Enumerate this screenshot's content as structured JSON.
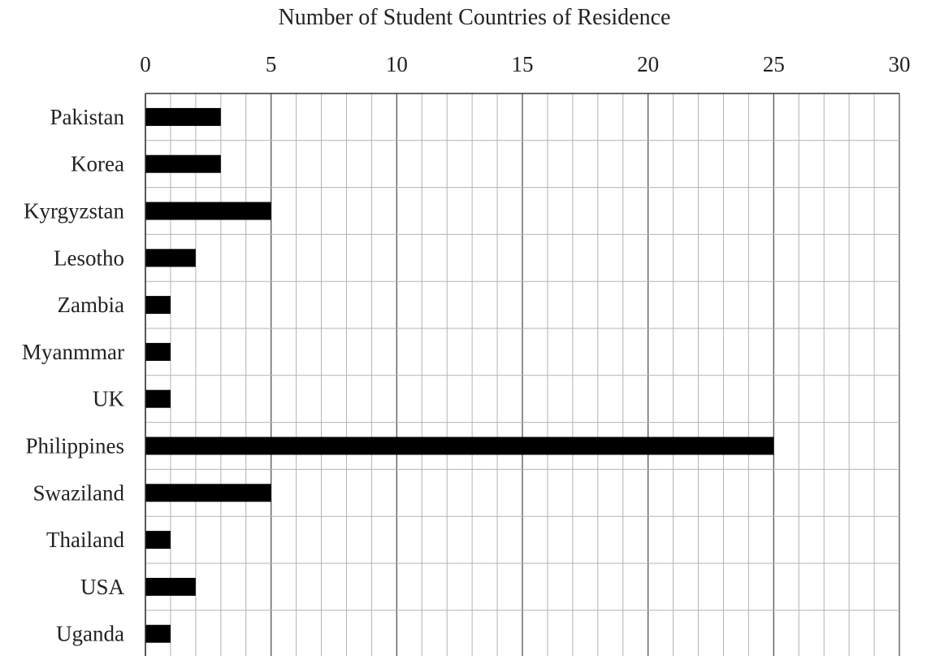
{
  "chart_data": {
    "type": "bar",
    "orientation": "horizontal",
    "title": "Number of Student Countries of Residence",
    "xlabel": "",
    "ylabel": "",
    "categories": [
      "Pakistan",
      "Korea",
      "Kyrgyzstan",
      "Lesotho",
      "Zambia",
      "Myanmmar",
      "UK",
      "Philippines",
      "Swaziland",
      "Thailand",
      "USA",
      "Uganda"
    ],
    "values": [
      3,
      3,
      5,
      2,
      1,
      1,
      1,
      25,
      5,
      1,
      2,
      1
    ],
    "xlim": [
      0,
      30
    ],
    "x_ticks": [
      "0",
      "5",
      "10",
      "15",
      "20",
      "25",
      "30"
    ],
    "x_axis_position": "top",
    "grid": true,
    "bar_color": "#000000",
    "grid_color": "#b3b3b3"
  }
}
